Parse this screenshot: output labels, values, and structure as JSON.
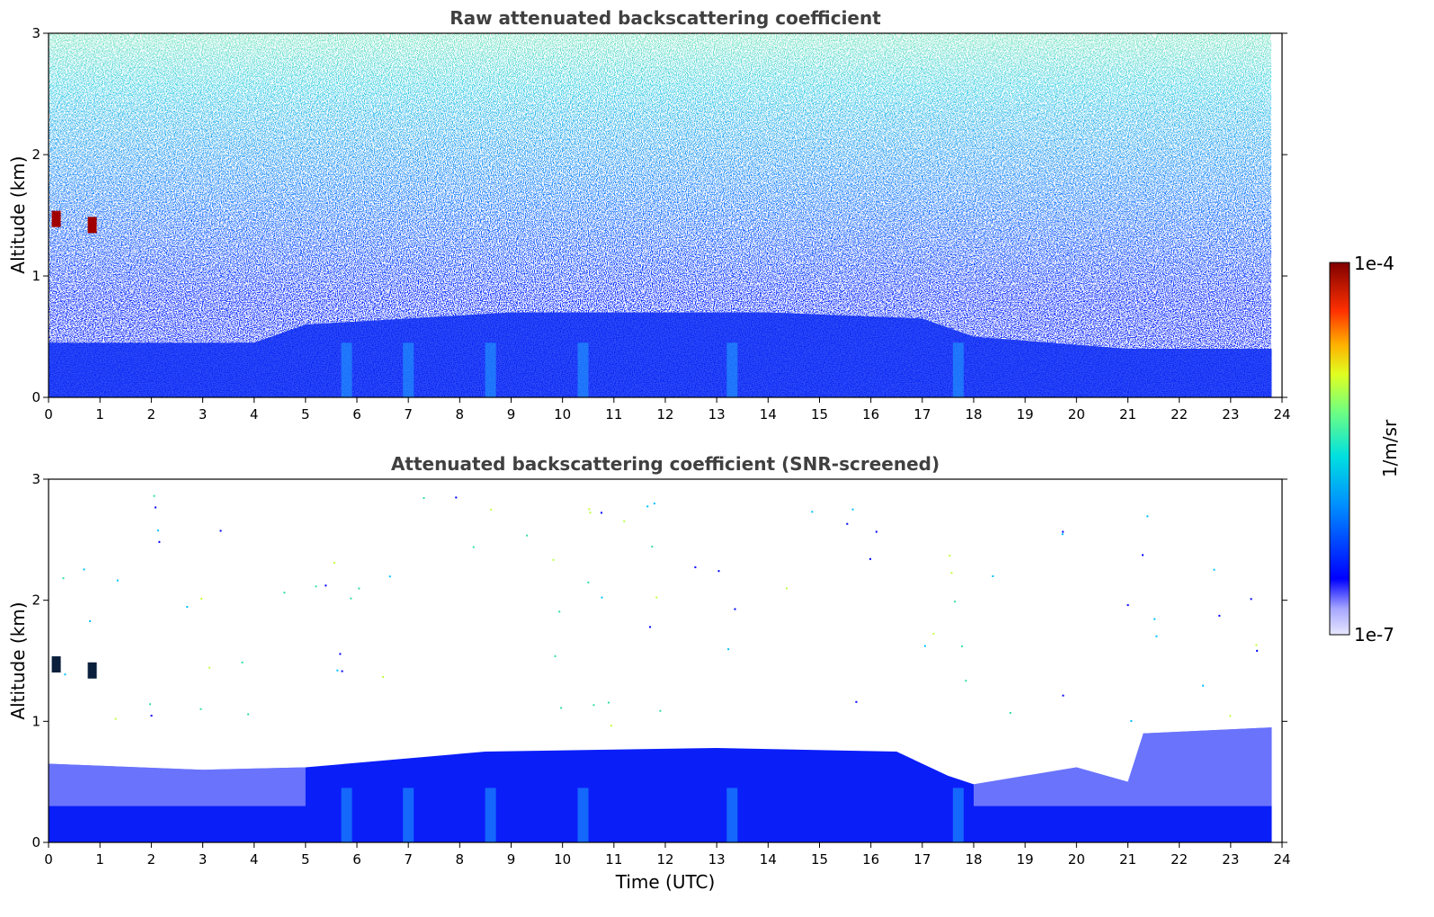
{
  "chart_data": [
    {
      "type": "heatmap",
      "title": "Raw attenuated backscattering coefficient",
      "xlabel": "",
      "ylabel": "Altitude (km)",
      "xlim": [
        0,
        24
      ],
      "ylim": [
        0,
        3
      ],
      "x_ticks": [
        "0",
        "1",
        "2",
        "3",
        "4",
        "5",
        "6",
        "7",
        "8",
        "9",
        "10",
        "11",
        "12",
        "13",
        "14",
        "15",
        "16",
        "17",
        "18",
        "19",
        "20",
        "21",
        "22",
        "23",
        "24"
      ],
      "y_ticks": [
        "0",
        "1",
        "2",
        "3"
      ],
      "data_end_time": 23.8,
      "boundary_layer_top_km": [
        {
          "t": 0,
          "z": 0.45
        },
        {
          "t": 4,
          "z": 0.45
        },
        {
          "t": 5,
          "z": 0.6
        },
        {
          "t": 9,
          "z": 0.7
        },
        {
          "t": 14,
          "z": 0.7
        },
        {
          "t": 17,
          "z": 0.65
        },
        {
          "t": 18,
          "z": 0.5
        },
        {
          "t": 21,
          "z": 0.4
        },
        {
          "t": 23.8,
          "z": 0.4
        }
      ],
      "features": [
        {
          "t": 0.15,
          "z": 1.47,
          "level": "1e-4",
          "note": "cloud"
        },
        {
          "t": 0.85,
          "z": 1.42,
          "level": "1e-4",
          "note": "cloud"
        }
      ]
    },
    {
      "type": "heatmap",
      "title": "Attenuated backscattering coefficient (SNR-screened)",
      "xlabel": "Time (UTC)",
      "ylabel": "Altitude (km)",
      "xlim": [
        0,
        24
      ],
      "ylim": [
        0,
        3
      ],
      "x_ticks": [
        "0",
        "1",
        "2",
        "3",
        "4",
        "5",
        "6",
        "7",
        "8",
        "9",
        "10",
        "11",
        "12",
        "13",
        "14",
        "15",
        "16",
        "17",
        "18",
        "19",
        "20",
        "21",
        "22",
        "23",
        "24"
      ],
      "y_ticks": [
        "0",
        "1",
        "2",
        "3"
      ],
      "data_end_time": 23.8,
      "boundary_layer_top_km": [
        {
          "t": 0,
          "z": 0.65
        },
        {
          "t": 3,
          "z": 0.6
        },
        {
          "t": 5,
          "z": 0.62
        },
        {
          "t": 8.5,
          "z": 0.75
        },
        {
          "t": 13,
          "z": 0.78
        },
        {
          "t": 16.5,
          "z": 0.75
        },
        {
          "t": 17.5,
          "z": 0.55
        },
        {
          "t": 18,
          "z": 0.48
        },
        {
          "t": 20,
          "z": 0.62
        },
        {
          "t": 21,
          "z": 0.5
        },
        {
          "t": 21.3,
          "z": 0.9
        },
        {
          "t": 23.8,
          "z": 0.95
        }
      ],
      "features": [
        {
          "t": 0.15,
          "z": 1.47,
          "level": "1e-7",
          "note": "cloud"
        },
        {
          "t": 0.85,
          "z": 1.42,
          "level": "1e-7",
          "note": "cloud"
        }
      ]
    }
  ],
  "colorbar": {
    "label": "1/m/sr",
    "max_label": "1e-4",
    "min_label": "1e-7",
    "colormap": [
      "#e8e8ff",
      "#a6a6ff",
      "#0000ff",
      "#00a0ff",
      "#00ffd0",
      "#a0ff50",
      "#ffe000",
      "#ff6000",
      "#e00000",
      "#800000"
    ]
  }
}
